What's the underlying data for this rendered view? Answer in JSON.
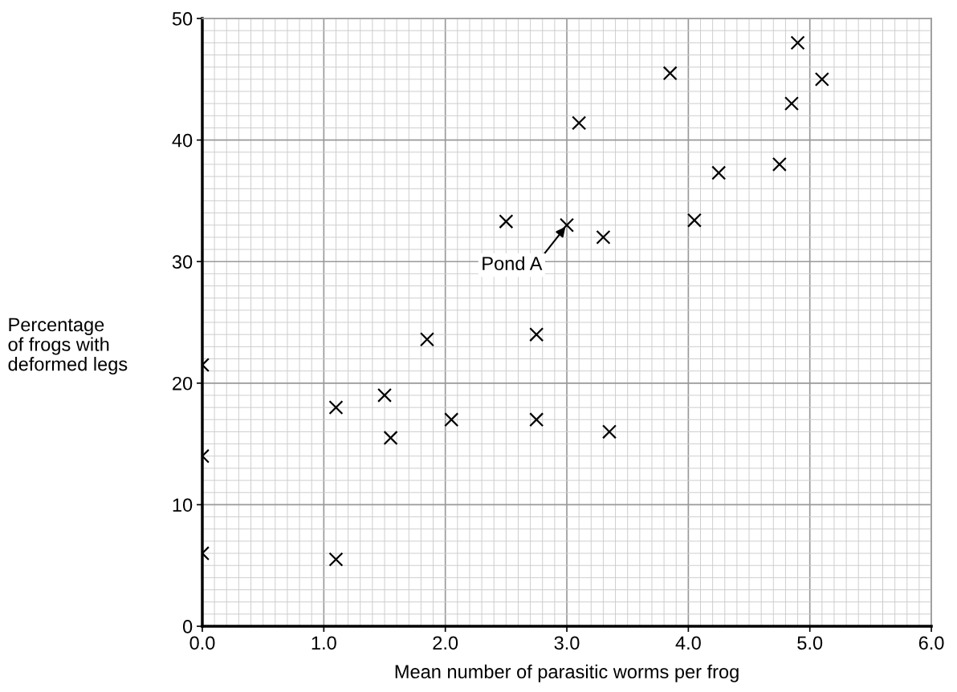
{
  "chart_data": {
    "type": "scatter",
    "xlabel": "Mean number of parasitic worms per frog",
    "ylabel": "Percentage\nof frogs with\ndeformed legs",
    "series": [
      {
        "color": "#000000",
        "x": [
          0.0,
          0.0,
          0.0,
          1.1,
          1.1,
          1.5,
          1.55,
          1.85,
          2.05,
          2.5,
          2.75,
          2.75,
          3.0,
          3.1,
          3.3,
          3.35,
          3.85,
          4.05,
          4.25,
          4.75,
          4.85,
          4.9,
          5.1
        ],
        "values": [
          21.5,
          14.0,
          6.0,
          18.0,
          5.5,
          19.0,
          15.5,
          23.6,
          17.0,
          33.3,
          24.0,
          17.0,
          33.0,
          41.4,
          32.0,
          16.0,
          45.5,
          33.4,
          37.3,
          38.0,
          43.0,
          48.0,
          45.0
        ]
      }
    ],
    "marker": "cross",
    "xlim": [
      0,
      6
    ],
    "ylim": [
      0,
      50
    ],
    "xticks": [
      {
        "value": 0,
        "label": "0.0"
      },
      {
        "value": 1,
        "label": "1.0"
      },
      {
        "value": 2,
        "label": "2.0"
      },
      {
        "value": 3,
        "label": "3.0"
      },
      {
        "value": 4,
        "label": "4.0"
      },
      {
        "value": 5,
        "label": "5.0"
      },
      {
        "value": 6,
        "label": "6.0"
      }
    ],
    "yticks": [
      0,
      10,
      20,
      30,
      40,
      50
    ],
    "grid": true,
    "annotations": [
      {
        "text": "Pond A",
        "x": 3.0,
        "y": 33.0
      }
    ]
  }
}
